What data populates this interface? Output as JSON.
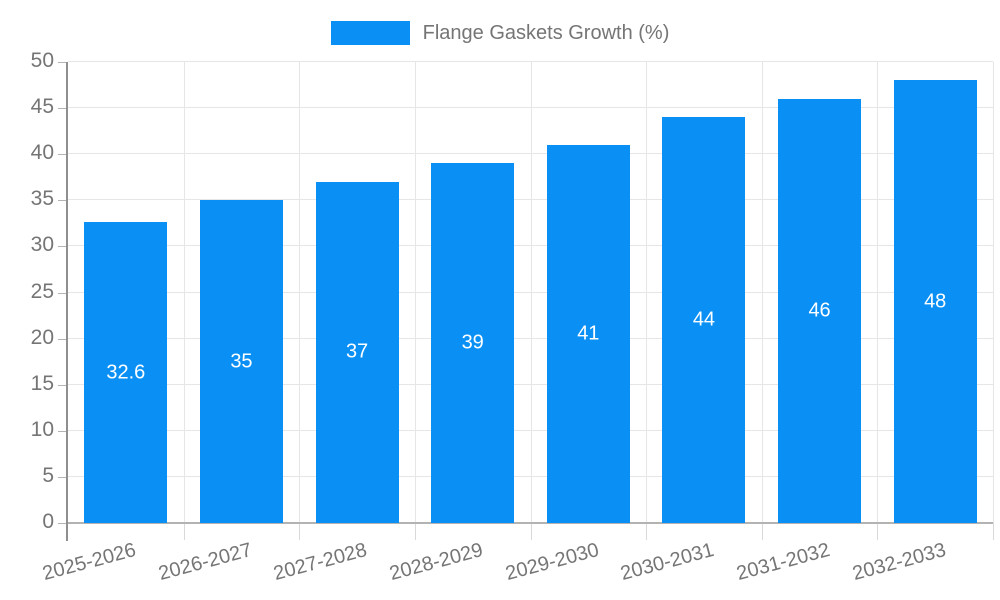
{
  "legend": {
    "label": "Flange Gaskets Growth (%)"
  },
  "chart_data": {
    "type": "bar",
    "title": "Flange Gaskets Growth (%)",
    "categories": [
      "2025-2026",
      "2026-2027",
      "2027-2028",
      "2028-2029",
      "2029-2030",
      "2030-2031",
      "2031-2032",
      "2032-2033"
    ],
    "series": [
      {
        "name": "Flange Gaskets Growth (%)",
        "color": "#0a90f5",
        "values": [
          32.6,
          35,
          37,
          39,
          41,
          44,
          46,
          48
        ]
      }
    ],
    "value_labels": [
      32.6,
      35,
      37,
      39,
      41,
      44,
      46,
      48
    ],
    "yticks": [
      0,
      5,
      10,
      15,
      20,
      25,
      30,
      35,
      40,
      45,
      50
    ],
    "ylim": [
      0,
      50
    ],
    "xlabel": "",
    "ylabel": "",
    "grid": true,
    "legend_position": "top-center",
    "colors": {
      "bar": "#0a90f5",
      "axis_text": "#757575",
      "value_label_text": "#ffffff",
      "gridline": "#e6e6e6",
      "y_axis_line": "#8f8f8f",
      "x_base_line": "#b3b3b3",
      "x_tick": "#d9d9d9"
    }
  }
}
